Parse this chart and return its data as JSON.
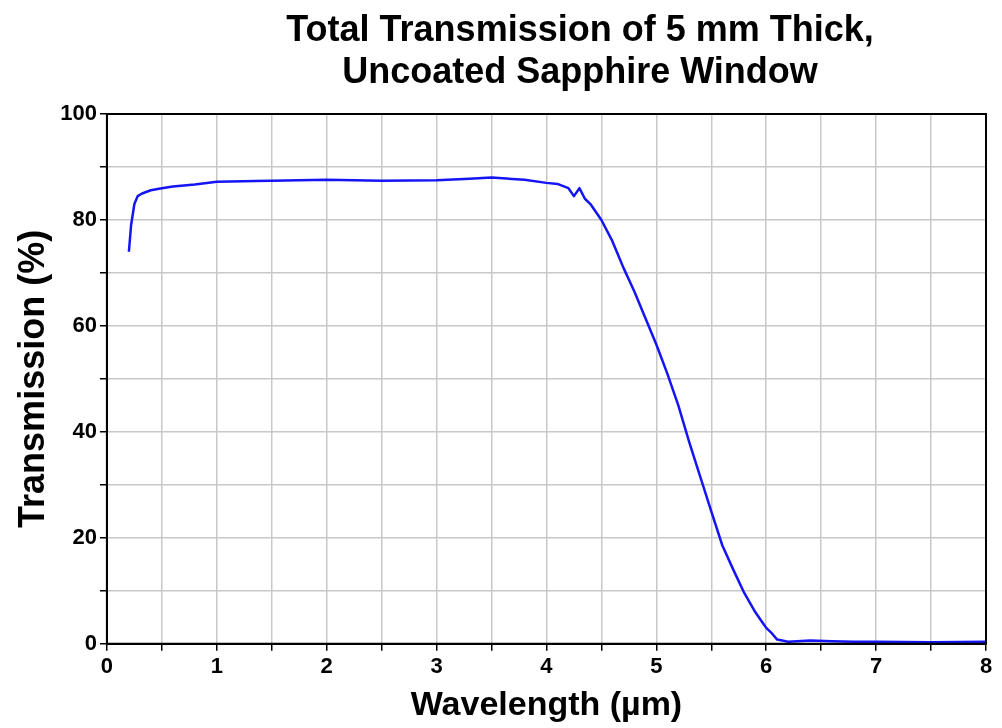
{
  "chart_data": {
    "type": "line",
    "title": "Total Transmission of 5 mm Thick, Uncoated Sapphire Window",
    "xlabel": "Wavelength (µm)",
    "ylabel": "Transmission (%)",
    "xlim": [
      0,
      8
    ],
    "ylim": [
      0,
      100
    ],
    "xticks": [
      0,
      {
        "value": 0.5,
        "label": null
      },
      1,
      {
        "value": 1.5,
        "label": null
      },
      2,
      {
        "value": 2.5,
        "label": null
      },
      3,
      {
        "value": 3.5,
        "label": null
      },
      4,
      {
        "value": 4.5,
        "label": null
      },
      5,
      {
        "value": 5.5,
        "label": null
      },
      6,
      {
        "value": 6.5,
        "label": null
      },
      7,
      {
        "value": 7.5,
        "label": null
      },
      8
    ],
    "yticks": [
      0,
      {
        "value": 10,
        "label": null
      },
      20,
      {
        "value": 30,
        "label": null
      },
      40,
      {
        "value": 50,
        "label": null
      },
      60,
      {
        "value": 70,
        "label": null
      },
      80,
      {
        "value": 90,
        "label": null
      },
      100
    ],
    "grid": true,
    "legend": false,
    "marker": "none",
    "line_style": "solid",
    "series": [
      {
        "color": "#1414f5",
        "x": [
          0.2,
          0.22,
          0.25,
          0.28,
          0.32,
          0.4,
          0.5,
          0.6,
          0.8,
          1.0,
          1.5,
          2.0,
          2.5,
          3.0,
          3.3,
          3.5,
          3.8,
          4.0,
          4.1,
          4.2,
          4.25,
          4.3,
          4.35,
          4.4,
          4.5,
          4.6,
          4.7,
          4.8,
          4.9,
          5.0,
          5.1,
          5.2,
          5.3,
          5.4,
          5.5,
          5.6,
          5.7,
          5.8,
          5.9,
          6.0,
          6.05,
          6.1,
          6.2,
          6.4,
          6.6,
          6.8,
          7.0,
          7.5,
          8.0
        ],
        "values": [
          74,
          79,
          83,
          84.5,
          85,
          85.6,
          86,
          86.3,
          86.7,
          87.2,
          87.4,
          87.6,
          87.4,
          87.5,
          87.8,
          88,
          87.6,
          87,
          86.8,
          86,
          84.5,
          86,
          84,
          83,
          80,
          76,
          71,
          66.5,
          61.5,
          56.5,
          51,
          45,
          38,
          31.5,
          25,
          18.6,
          14,
          9.6,
          6,
          3,
          2,
          0.8,
          0.4,
          0.6,
          0.5,
          0.4,
          0.4,
          0.3,
          0.4
        ]
      }
    ]
  }
}
